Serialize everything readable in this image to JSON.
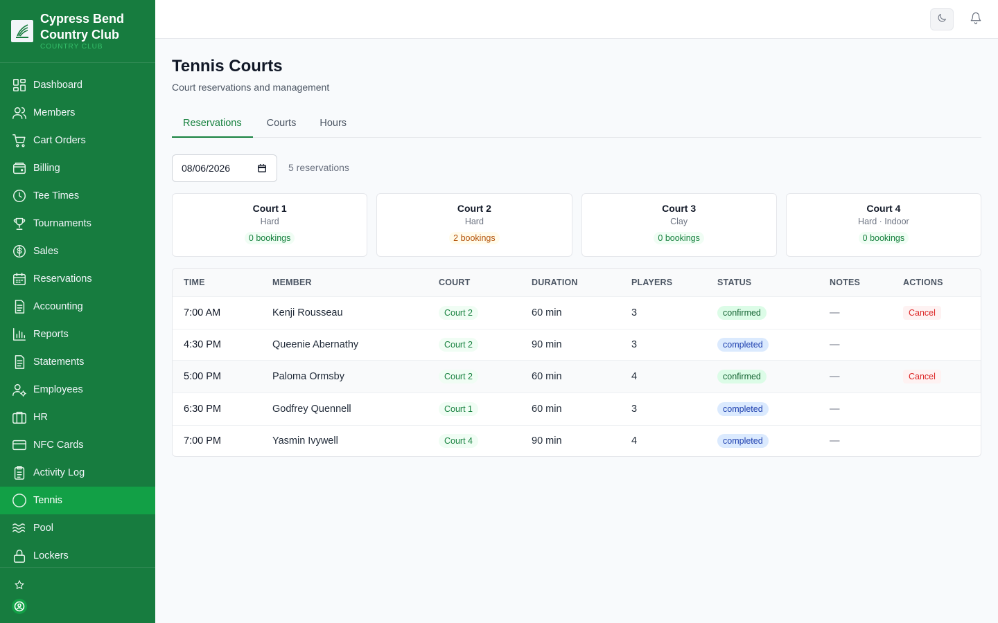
{
  "brand": {
    "name_line1": "Cypress Bend",
    "name_line2": "Country Club",
    "subtitle": "COUNTRY CLUB"
  },
  "sidebar": {
    "items": [
      {
        "label": "Dashboard",
        "icon": "grid-icon"
      },
      {
        "label": "Members",
        "icon": "users-icon"
      },
      {
        "label": "Cart Orders",
        "icon": "cart-icon"
      },
      {
        "label": "Billing",
        "icon": "wallet-icon"
      },
      {
        "label": "Tee Times",
        "icon": "clock-icon"
      },
      {
        "label": "Tournaments",
        "icon": "trophy-icon"
      },
      {
        "label": "Sales",
        "icon": "dollar-icon"
      },
      {
        "label": "Reservations",
        "icon": "calendar-icon"
      },
      {
        "label": "Accounting",
        "icon": "document-icon"
      },
      {
        "label": "Reports",
        "icon": "bar-chart-icon"
      },
      {
        "label": "Statements",
        "icon": "document-icon"
      },
      {
        "label": "Employees",
        "icon": "user-cog-icon"
      },
      {
        "label": "HR",
        "icon": "briefcase-icon"
      },
      {
        "label": "NFC Cards",
        "icon": "card-icon"
      },
      {
        "label": "Activity Log",
        "icon": "clipboard-icon"
      },
      {
        "label": "Tennis",
        "icon": "circle-icon",
        "active": true
      },
      {
        "label": "Pool",
        "icon": "waves-icon"
      },
      {
        "label": "Lockers",
        "icon": "lock-icon"
      }
    ]
  },
  "page": {
    "title": "Tennis Courts",
    "subtitle": "Court reservations and management"
  },
  "tabs": [
    {
      "label": "Reservations",
      "active": true
    },
    {
      "label": "Courts"
    },
    {
      "label": "Hours"
    }
  ],
  "filter": {
    "date": "08/06/2026",
    "count_text": "5 reservations"
  },
  "courts": [
    {
      "name": "Court 1",
      "surface": "Hard",
      "bookings": "0 bookings"
    },
    {
      "name": "Court 2",
      "surface": "Hard",
      "bookings": "2 bookings"
    },
    {
      "name": "Court 3",
      "surface": "Clay",
      "bookings": "0 bookings"
    },
    {
      "name": "Court 4",
      "surface": "Hard · Indoor",
      "bookings": "0 bookings"
    }
  ],
  "table": {
    "headers": [
      "TIME",
      "MEMBER",
      "COURT",
      "DURATION",
      "PLAYERS",
      "STATUS",
      "NOTES",
      "ACTIONS"
    ],
    "rows": [
      {
        "time": "7:00 AM",
        "member": "Kenji Rousseau",
        "court": "Court 2",
        "duration": "60 min",
        "players": "3",
        "status": "confirmed",
        "notes": "—",
        "action": "Cancel"
      },
      {
        "time": "4:30 PM",
        "member": "Queenie Abernathy",
        "court": "Court 2",
        "duration": "90 min",
        "players": "3",
        "status": "completed",
        "notes": "—",
        "action": ""
      },
      {
        "time": "5:00 PM",
        "member": "Paloma Ormsby",
        "court": "Court 2",
        "duration": "60 min",
        "players": "4",
        "status": "confirmed",
        "notes": "—",
        "action": "Cancel"
      },
      {
        "time": "6:30 PM",
        "member": "Godfrey Quennell",
        "court": "Court 1",
        "duration": "60 min",
        "players": "3",
        "status": "completed",
        "notes": "—",
        "action": ""
      },
      {
        "time": "7:00 PM",
        "member": "Yasmin Ivywell",
        "court": "Court 4",
        "duration": "90 min",
        "players": "4",
        "status": "completed",
        "notes": "—",
        "action": ""
      }
    ]
  },
  "colors": {
    "sidebar_bg": "#177c3f",
    "active_item": "#12a046",
    "accent": "#15803d"
  }
}
